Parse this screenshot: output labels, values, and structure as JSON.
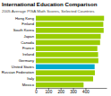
{
  "chart_data": {
    "type": "bar",
    "orientation": "horizontal",
    "title": "International Education Comparison",
    "subtitle": "2005 Average PISA Math Scores, Selected Countries",
    "categories": [
      "Hong Kong",
      "Finland",
      "South Korea",
      "Japan",
      "Canada",
      "France",
      "Ireland",
      "Germany",
      "United States",
      "Russian Federation",
      "Italy",
      "Mexico"
    ],
    "values": [
      550,
      544,
      547,
      523,
      518,
      496,
      502,
      504,
      474,
      476,
      462,
      385
    ],
    "colors": [
      "#99cc00",
      "#99cc00",
      "#99cc00",
      "#99cc00",
      "#99cc00",
      "#99cc00",
      "#99cc00",
      "#99cc00",
      "#00aacc",
      "#99cc00",
      "#99cc00",
      "#99cc00"
    ],
    "xlim": [
      0,
      570
    ],
    "xticks": [
      0,
      100,
      200,
      300,
      400
    ],
    "grid": false
  }
}
